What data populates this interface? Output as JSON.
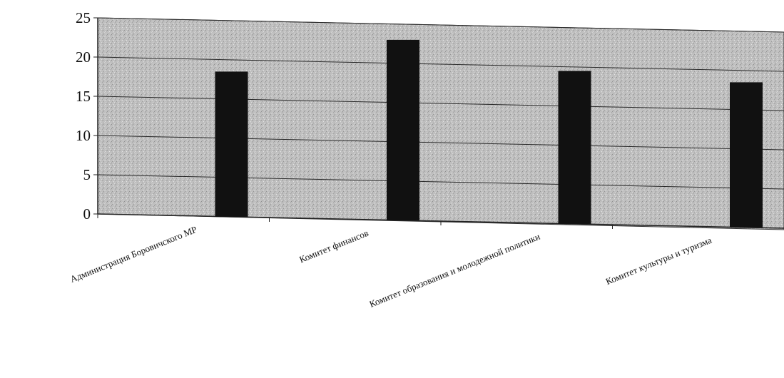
{
  "chart_data": {
    "type": "bar",
    "categories": [
      "Администрация Боровичского МР",
      "Комитет финансов",
      "Комитет образования и молодежной политики",
      "Комитет культуры и туризма"
    ],
    "values": [
      18.5,
      23,
      19.5,
      18.5
    ],
    "ylim": [
      0,
      25
    ],
    "yticks": [
      0,
      5,
      10,
      15,
      20,
      25
    ],
    "grid": true,
    "legend": "none",
    "colors": {
      "bar": "#111111",
      "plot_area": "#bdbdbd",
      "grid": "#2a2a2a",
      "axis": "#222222"
    }
  }
}
